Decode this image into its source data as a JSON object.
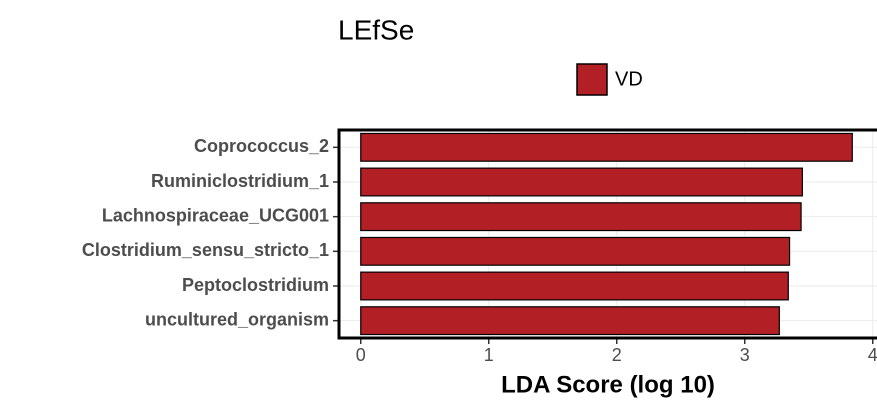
{
  "chart_data": {
    "type": "barh",
    "title": "LEfSe",
    "categories": [
      "Coprococcus_2",
      "Ruminiclostridium_1",
      "Lachnospiraceae_UCG001",
      "Clostridium_sensu_stricto_1",
      "Peptoclostridium",
      "uncultured_organism"
    ],
    "series": [
      {
        "name": "VD",
        "color": "#b22025",
        "values": [
          3.84,
          3.45,
          3.44,
          3.35,
          3.34,
          3.27
        ]
      }
    ],
    "xlabel": "LDA Score (log 10)",
    "xlim": [
      -0.17,
      4.2
    ],
    "xticks": [
      0,
      1,
      2,
      3,
      4
    ],
    "grid": true,
    "legend": "top"
  }
}
